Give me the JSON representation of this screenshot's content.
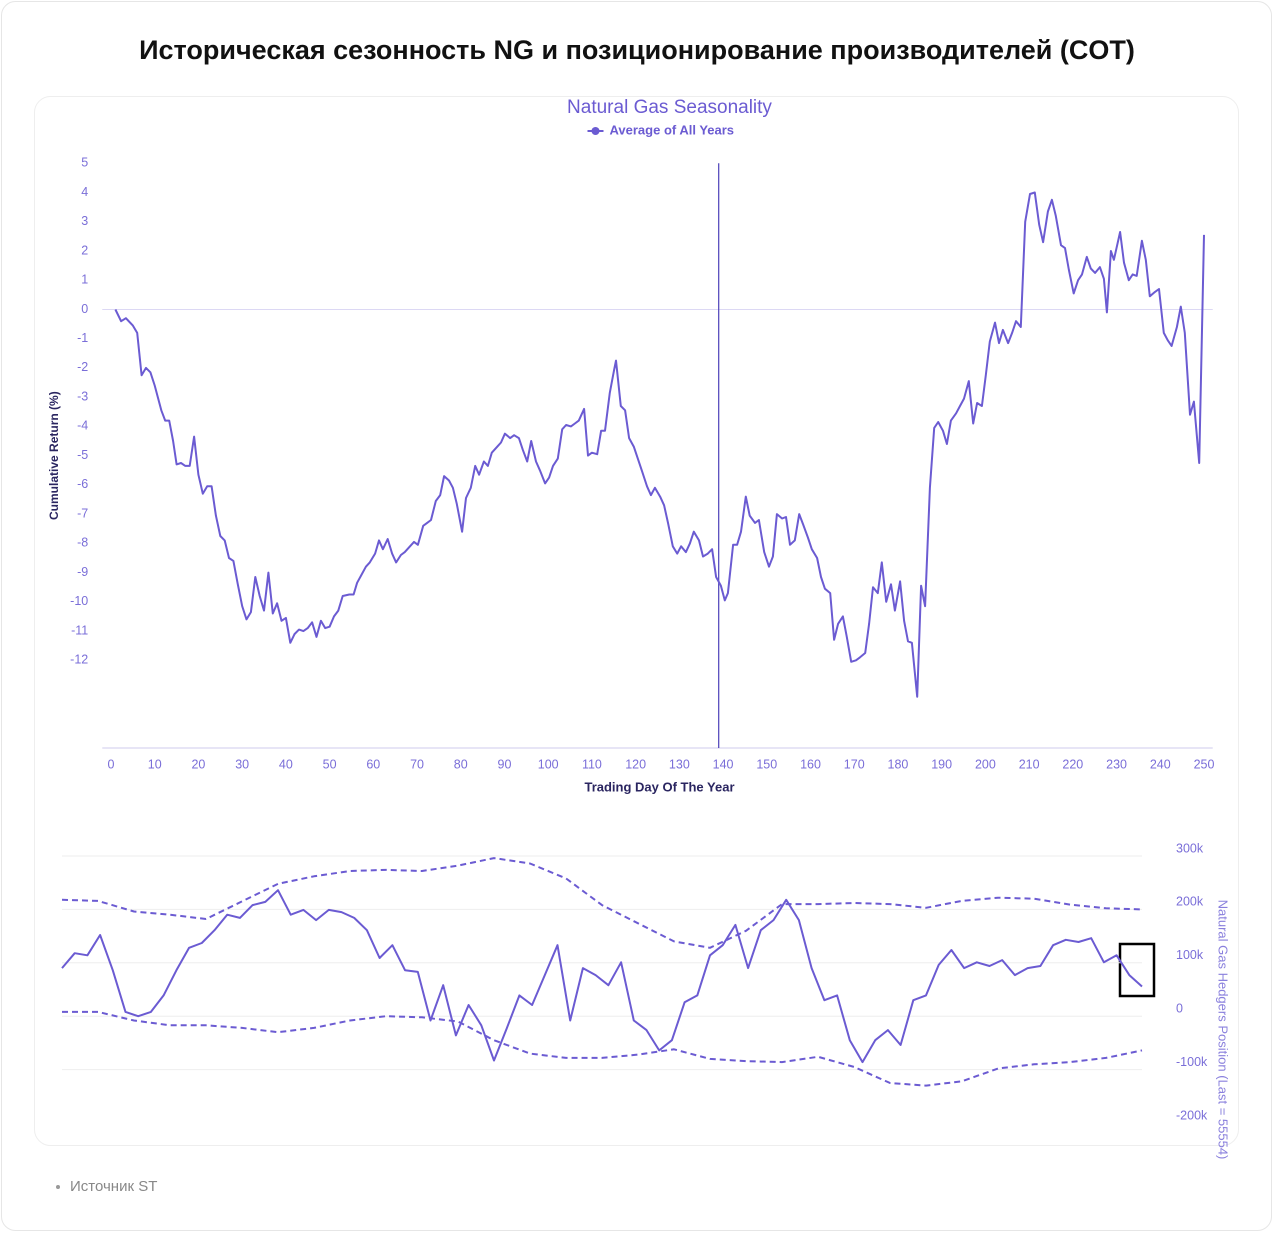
{
  "page_title": "Историческая сезонность NG и позиционирование производителей (COT)",
  "source": "Источник ST",
  "chart_data": [
    {
      "type": "line",
      "title": "Natural Gas Seasonality",
      "xlabel": "Trading Day Of The Year",
      "ylabel": "Cumulative Return (%)",
      "xlim": [
        -2,
        252
      ],
      "xticks": [
        0,
        10,
        20,
        30,
        40,
        50,
        60,
        70,
        80,
        90,
        100,
        110,
        120,
        130,
        140,
        150,
        160,
        170,
        180,
        190,
        200,
        210,
        220,
        230,
        240,
        250
      ],
      "ylim": [
        -15,
        5
      ],
      "yticks": [
        5,
        4,
        3,
        2,
        1,
        0,
        -1,
        -2,
        -3,
        -4,
        -5,
        -6,
        -7,
        -8,
        -9,
        -10,
        -11,
        -12
      ],
      "hline": 0,
      "vline_x": 139,
      "legend": "top-center",
      "x": [
        1,
        2.3,
        3.4,
        5,
        6,
        7,
        8,
        9,
        10,
        11.5,
        12.4,
        13.3,
        14.2,
        15,
        16,
        17,
        18,
        19,
        20,
        21,
        22,
        23,
        24,
        25,
        26,
        27,
        28,
        29,
        30,
        31,
        32,
        33,
        34,
        35,
        36,
        37,
        38,
        39,
        40,
        41,
        42,
        43,
        44,
        45,
        46,
        47,
        48,
        49,
        50,
        51,
        52,
        53,
        54.5,
        55.5,
        56.3,
        57.2,
        58.3,
        59.2,
        60.4,
        61.3,
        62.2,
        63.3,
        64.3,
        65.2,
        66.3,
        67.2,
        68.4,
        69.3,
        70.2,
        71.4,
        72.3,
        73.2,
        74.3,
        75.3,
        76.2,
        77.3,
        78.2,
        79.1,
        80.3,
        81.2,
        82.3,
        83.3,
        84.2,
        85.3,
        86.2,
        87.1,
        88.3,
        89.2,
        90.1,
        91.3,
        92.2,
        93.3,
        94.2,
        95.2,
        96.1,
        97.2,
        98.1,
        99.3,
        100.2,
        101.1,
        102.2,
        103.2,
        104.1,
        105.2,
        106.1,
        107,
        108.2,
        109.1,
        110,
        111.2,
        112.1,
        113,
        114.1,
        115.1,
        115.5,
        116.6,
        117.6,
        118.5,
        119.6,
        120.5,
        121.5,
        122.6,
        123.5,
        124.4,
        125.6,
        126.5,
        127.4,
        128.5,
        129.5,
        130.4,
        131.5,
        132.4,
        133.3,
        134.5,
        135.4,
        136.5,
        137.5,
        138.4,
        139.5,
        140.4,
        141.1,
        142.3,
        143.2,
        144.1,
        145.2,
        146.1,
        147.3,
        148.2,
        149.4,
        150.5,
        151.4,
        152.3,
        153.5,
        154.4,
        155.3,
        156.4,
        157.4,
        158.3,
        159.4,
        160.3,
        161.5,
        162.4,
        163.3,
        164.5,
        165.4,
        166.3,
        167.4,
        168.3,
        169.3,
        170.4,
        171.3,
        172.5,
        173.4,
        174.3,
        175.4,
        176.3,
        177.3,
        178.4,
        179.3,
        180.5,
        181.4,
        182.3,
        183.2,
        184.4,
        185.3,
        186.2,
        187.3,
        188.3,
        189.2,
        190.3,
        191.2,
        192.1,
        193.3,
        194.2,
        195.1,
        196.2,
        197.2,
        198.1,
        199.2,
        200.1,
        201,
        202.2,
        203.1,
        204,
        205.2,
        206.1,
        207,
        208.1,
        209.1,
        210.2,
        211.3,
        212.3,
        213.2,
        214.3,
        215.2,
        216.1,
        217.3,
        218.2,
        219.1,
        220.2,
        221.2,
        222.1,
        223.2,
        224.1,
        225.1,
        226.2,
        227.1,
        227.8,
        228.7,
        229.4,
        230.8,
        231.7,
        232.8,
        233.7,
        234.6,
        235.8,
        236.7,
        237.6,
        238.8,
        239.7,
        240.8,
        241.7,
        242.6,
        243.8,
        244.7,
        245.6,
        246.8,
        247.7,
        248.9,
        250
      ],
      "series": [
        {
          "name": "Average of All Years",
          "color": "#6b5bd2",
          "line_style": "solid",
          "values": [
            0,
            -0.4,
            -0.3,
            -0.55,
            -0.8,
            -2.25,
            -2.0,
            -2.15,
            -2.6,
            -3.45,
            -3.8,
            -3.8,
            -4.5,
            -5.3,
            -5.25,
            -5.35,
            -5.35,
            -4.35,
            -5.65,
            -6.3,
            -6.05,
            -6.05,
            -7.05,
            -7.75,
            -7.9,
            -8.5,
            -8.6,
            -9.4,
            -10.15,
            -10.6,
            -10.35,
            -9.15,
            -9.8,
            -10.3,
            -9.0,
            -10.4,
            -10.05,
            -10.65,
            -10.55,
            -11.4,
            -11.1,
            -10.95,
            -11.0,
            -10.9,
            -10.7,
            -11.2,
            -10.65,
            -10.9,
            -10.85,
            -10.5,
            -10.3,
            -9.8,
            -9.75,
            -9.75,
            -9.35,
            -9.1,
            -8.8,
            -8.65,
            -8.35,
            -7.9,
            -8.2,
            -7.85,
            -8.35,
            -8.65,
            -8.4,
            -8.3,
            -8.1,
            -7.95,
            -8.05,
            -7.4,
            -7.3,
            -7.2,
            -6.55,
            -6.35,
            -5.7,
            -5.85,
            -6.1,
            -6.65,
            -7.6,
            -6.45,
            -6.1,
            -5.35,
            -5.65,
            -5.2,
            -5.35,
            -4.9,
            -4.7,
            -4.55,
            -4.25,
            -4.4,
            -4.3,
            -4.4,
            -4.8,
            -5.2,
            -4.5,
            -5.2,
            -5.5,
            -5.95,
            -5.75,
            -5.35,
            -5.1,
            -4.1,
            -3.95,
            -4.0,
            -3.9,
            -3.8,
            -3.4,
            -5.0,
            -4.9,
            -4.95,
            -4.15,
            -4.15,
            -2.85,
            -2.05,
            -1.75,
            -3.3,
            -3.45,
            -4.4,
            -4.7,
            -5.1,
            -5.55,
            -6.05,
            -6.35,
            -6.1,
            -6.4,
            -6.7,
            -7.3,
            -8.1,
            -8.35,
            -8.1,
            -8.3,
            -8.0,
            -7.6,
            -7.9,
            -8.45,
            -8.35,
            -8.2,
            -9.15,
            -9.45,
            -9.95,
            -9.7,
            -8.05,
            -8.05,
            -7.6,
            -6.4,
            -7.05,
            -7.3,
            -7.2,
            -8.3,
            -8.8,
            -8.45,
            -7.0,
            -7.15,
            -7.1,
            -8.05,
            -7.9,
            -7.0,
            -7.35,
            -7.8,
            -8.2,
            -8.5,
            -9.15,
            -9.55,
            -9.7,
            -11.3,
            -10.75,
            -10.5,
            -11.2,
            -12.05,
            -12.0,
            -11.9,
            -11.75,
            -10.75,
            -9.5,
            -9.7,
            -8.65,
            -10.0,
            -9.4,
            -10.3,
            -9.3,
            -10.65,
            -11.35,
            -11.4,
            -13.25,
            -9.45,
            -10.15,
            -6.1,
            -4.05,
            -3.85,
            -4.15,
            -4.6,
            -3.8,
            -3.55,
            -3.3,
            -3.05,
            -2.45,
            -3.9,
            -3.2,
            -3.3,
            -2.25,
            -1.1,
            -0.45,
            -1.15,
            -0.7,
            -1.15,
            -0.8,
            -0.4,
            -0.6,
            3.0,
            3.95,
            4.0,
            2.9,
            2.3,
            3.35,
            3.75,
            3.2,
            2.2,
            2.1,
            1.35,
            0.55,
            1.0,
            1.2,
            1.8,
            1.4,
            1.25,
            1.45,
            1.05,
            -0.1,
            2.0,
            1.7,
            2.65,
            1.6,
            1.0,
            1.2,
            1.15,
            2.35,
            1.7,
            0.45,
            0.6,
            0.7,
            -0.8,
            -1.05,
            -1.25,
            -0.6,
            0.1,
            -0.8,
            -3.6,
            -3.15,
            -5.25,
            2.55
          ]
        }
      ]
    },
    {
      "type": "line",
      "ylabel": "Natural Gas Hedgers Position (Last = 55554)",
      "y_axis_side": "right",
      "grid": true,
      "ylim": [
        -200000,
        300000
      ],
      "yticks": [
        {
          "value": 300000,
          "label": "300k"
        },
        {
          "value": 200000,
          "label": "200k"
        },
        {
          "value": 100000,
          "label": "100k"
        },
        0,
        {
          "value": -100000,
          "label": "-100k"
        },
        {
          "value": -200000,
          "label": "-200k"
        }
      ],
      "series": [
        {
          "color": "#6b5bd2",
          "line_style": "solid",
          "values": [
            90000,
            118000,
            114000,
            152000,
            86000,
            8000,
            0,
            8000,
            39000,
            86000,
            128000,
            137000,
            161000,
            190000,
            184000,
            208000,
            214000,
            236000,
            190000,
            199000,
            180000,
            199000,
            195000,
            184000,
            161000,
            109000,
            133000,
            86000,
            83000,
            -8000,
            58000,
            -36000,
            21000,
            -17000,
            -83000,
            -23000,
            39000,
            21000,
            77000,
            133000,
            -8000,
            90000,
            77000,
            58000,
            101000,
            -8000,
            -26000,
            -64000,
            -45000,
            26000,
            39000,
            114000,
            133000,
            171000,
            90000,
            161000,
            180000,
            218000,
            180000,
            90000,
            30000,
            39000,
            -45000,
            -86000,
            -45000,
            -26000,
            -54000,
            30000,
            39000,
            96000,
            124000,
            90000,
            101000,
            94000,
            105000,
            77000,
            90000,
            94000,
            133000,
            143000,
            139000,
            146000,
            101000,
            114000,
            77000,
            55554
          ]
        },
        {
          "color": "#6b5bd2",
          "line_style": "dashed",
          "values": [
            218000,
            216000,
            196000,
            190000,
            182000,
            215000,
            248000,
            262000,
            272000,
            274000,
            272000,
            282000,
            296000,
            286000,
            258000,
            208000,
            174000,
            140000,
            128000,
            160000,
            210000,
            210000,
            212000,
            210000,
            203000,
            216000,
            222000,
            220000,
            209000,
            202000,
            200000
          ]
        },
        {
          "color": "#6b5bd2",
          "line_style": "dashed",
          "values": [
            8000,
            8000,
            -8000,
            -17000,
            -17000,
            -22000,
            -30000,
            -22000,
            -8000,
            0,
            -2000,
            -10000,
            -45000,
            -70000,
            -78000,
            -78000,
            -72000,
            -62000,
            -80000,
            -84000,
            -86000,
            -76000,
            -95000,
            -125000,
            -130000,
            -122000,
            -98000,
            -90000,
            -86000,
            -78000,
            -64000
          ]
        }
      ]
    }
  ]
}
